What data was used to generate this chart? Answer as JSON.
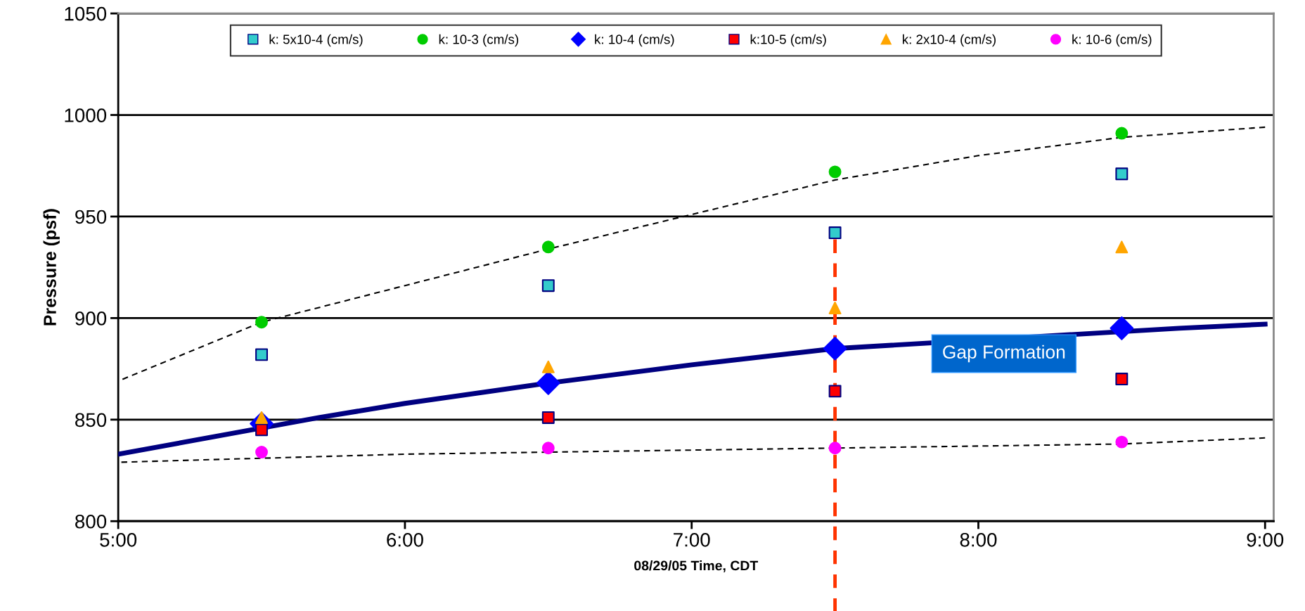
{
  "chart_data": {
    "type": "scatter",
    "xlabel": "08/29/05 Time, CDT",
    "ylabel": "Pressure (psf)",
    "x": [
      5.5,
      6.5,
      7.5,
      8.5
    ],
    "series": [
      {
        "name": "k: 5x10-4 (cm/s)",
        "color": "#33cccc",
        "marker": "square",
        "values": [
          882,
          916,
          942,
          971
        ]
      },
      {
        "name": "k: 10-3 (cm/s)",
        "color": "#00cc00",
        "marker": "circle",
        "values": [
          898,
          935,
          972,
          991
        ]
      },
      {
        "name": "k: 10-4 (cm/s)",
        "color": "#0000ff",
        "marker": "diamond",
        "values": [
          848,
          868,
          885,
          895
        ]
      },
      {
        "name": "k:10-5 (cm/s)",
        "color": "#ff0000",
        "marker": "square",
        "values": [
          845,
          851,
          864,
          870
        ]
      },
      {
        "name": "k: 2x10-4 (cm/s)",
        "color": "#ffa500",
        "marker": "triangle",
        "values": [
          851,
          876,
          905,
          935
        ]
      },
      {
        "name": "k: 10-6 (cm/s)",
        "color": "#ff00ff",
        "marker": "circle",
        "values": [
          834,
          836,
          836,
          839
        ]
      },
      {
        "type": "line",
        "color": "#000000",
        "line_style": "dashed",
        "marker": "none",
        "x": [
          5.0,
          5.5,
          6.0,
          6.5,
          7.0,
          7.5,
          8.0,
          8.5,
          9.0
        ],
        "values": [
          869,
          898,
          916,
          934,
          951,
          968,
          980,
          989,
          994
        ]
      },
      {
        "type": "line",
        "color": "#000080",
        "line_style": "solid",
        "marker": "none",
        "x": [
          5.0,
          5.7,
          6.0,
          6.5,
          7.0,
          7.5,
          8.7,
          9.0
        ],
        "values": [
          833,
          851,
          858,
          868,
          877,
          885,
          895,
          897
        ]
      },
      {
        "type": "line",
        "color": "#000000",
        "line_style": "dashed",
        "marker": "none",
        "x": [
          5.0,
          5.5,
          6.0,
          6.5,
          7.0,
          7.5,
          8.0,
          8.5,
          9.0
        ],
        "values": [
          829,
          831,
          833,
          834,
          835,
          836,
          837,
          838,
          841
        ]
      }
    ],
    "xlim": [
      5,
      9.03
    ],
    "xticks": [
      {
        "value": 5,
        "label": "5:00"
      },
      {
        "value": 6,
        "label": "6:00"
      },
      {
        "value": 7,
        "label": "7:00"
      },
      {
        "value": 8,
        "label": "8:00"
      },
      {
        "value": 9,
        "label": "9:00"
      }
    ],
    "ylim": [
      800,
      1050
    ],
    "yticks": [
      800,
      850,
      900,
      950,
      1000,
      1050
    ],
    "ref_lines": [
      {
        "axis": "x",
        "value": 7.5,
        "color": "#ff3300",
        "line_style": "dashed"
      }
    ],
    "annotations": [
      "Gap Formation"
    ],
    "grid": "y",
    "legend": "top"
  }
}
